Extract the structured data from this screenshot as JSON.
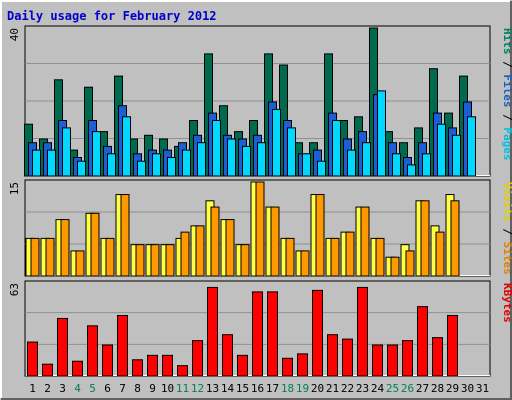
{
  "title": "Daily usage for February 2012",
  "chart_data": {
    "type": "bar",
    "title": "Daily usage for February 2012",
    "categories": [
      "1",
      "2",
      "3",
      "4",
      "5",
      "6",
      "7",
      "8",
      "9",
      "10",
      "11",
      "12",
      "13",
      "14",
      "15",
      "16",
      "17",
      "18",
      "19",
      "20",
      "21",
      "22",
      "23",
      "24",
      "25",
      "26",
      "27",
      "28",
      "29",
      "30",
      "31"
    ],
    "weekend_days": [
      "4",
      "5",
      "11",
      "12",
      "18",
      "19",
      "25",
      "26"
    ],
    "panels": [
      {
        "id": "traffic",
        "ymax_label": "40",
        "ymax": 40,
        "legend": [
          {
            "text": "Pages",
            "color": "#00c0e0"
          },
          {
            "text": " / ",
            "color": "#000000"
          },
          {
            "text": "Files",
            "color": "#1a60c0"
          },
          {
            "text": " / ",
            "color": "#000000"
          },
          {
            "text": "Hits",
            "color": "#008060"
          }
        ],
        "series": [
          {
            "name": "Hits",
            "color": "#006a4e",
            "values": [
              14,
              10,
              26,
              7,
              24,
              12,
              27,
              10,
              11,
              10,
              8,
              15,
              33,
              19,
              12,
              15,
              33,
              30,
              9,
              9,
              33,
              15,
              16,
              40,
              12,
              9,
              13,
              29,
              17,
              27,
              0
            ]
          },
          {
            "name": "Files",
            "color": "#1a5fd6",
            "values": [
              9,
              9,
              15,
              5,
              15,
              8,
              19,
              6,
              7,
              7,
              9,
              11,
              17,
              11,
              10,
              11,
              20,
              15,
              6,
              7,
              17,
              10,
              12,
              22,
              9,
              5,
              9,
              17,
              13,
              20,
              0
            ]
          },
          {
            "name": "Pages",
            "color": "#00d8ff",
            "values": [
              7,
              7,
              13,
              4,
              12,
              6,
              16,
              4,
              6,
              5,
              7,
              9,
              15,
              10,
              8,
              9,
              18,
              13,
              6,
              4,
              15,
              7,
              9,
              23,
              6,
              3,
              6,
              14,
              11,
              16,
              0
            ]
          }
        ]
      },
      {
        "id": "visits",
        "ymax_label": "15",
        "ymax": 15,
        "legend": [
          {
            "text": "Sites",
            "color": "#e08000"
          },
          {
            "text": " / ",
            "color": "#000000"
          },
          {
            "text": "Visits",
            "color": "#e0d000"
          }
        ],
        "series": [
          {
            "name": "Visits",
            "color": "#ffff44",
            "values": [
              6,
              6,
              9,
              4,
              10,
              6,
              13,
              5,
              5,
              5,
              6,
              8,
              12,
              9,
              5,
              15,
              11,
              6,
              4,
              13,
              6,
              7,
              11,
              6,
              3,
              5,
              12,
              8,
              13,
              0,
              0
            ]
          },
          {
            "name": "Sites",
            "color": "#ff9900",
            "values": [
              6,
              6,
              9,
              4,
              10,
              6,
              13,
              5,
              5,
              5,
              7,
              8,
              11,
              9,
              5,
              15,
              11,
              6,
              4,
              13,
              6,
              7,
              11,
              6,
              3,
              4,
              12,
              7,
              12,
              0,
              0
            ]
          }
        ]
      },
      {
        "id": "kbytes",
        "ymax_label": "63",
        "ymax": 63,
        "legend": [
          {
            "text": "KBytes",
            "color": "#e00000"
          }
        ],
        "series": [
          {
            "name": "KBytes",
            "color": "#ff0000",
            "values": [
              23,
              8,
              39,
              10,
              34,
              21,
              41,
              11,
              14,
              14,
              7,
              24,
              60,
              28,
              14,
              57,
              57,
              12,
              15,
              58,
              28,
              25,
              60,
              21,
              21,
              24,
              47,
              26,
              41,
              0,
              0
            ]
          }
        ]
      }
    ]
  }
}
